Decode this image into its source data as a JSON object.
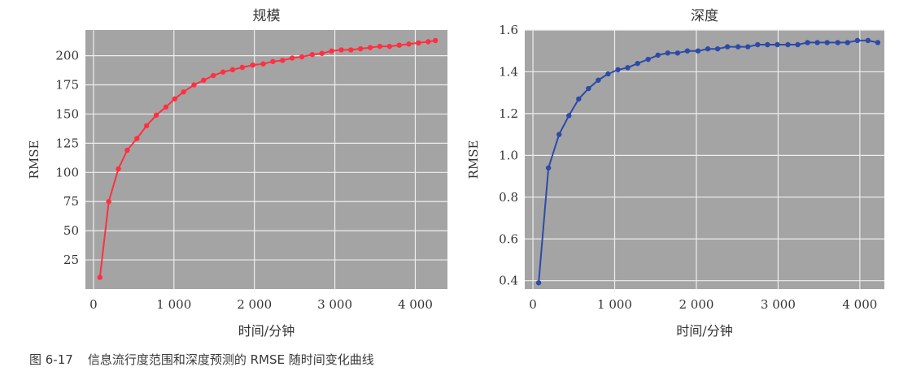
{
  "caption": {
    "number": "图 6-17",
    "text": "信息流行度范围和深度预测的 RMSE 随时间变化曲线"
  },
  "colors": {
    "plot_background": "#a4a4a4",
    "grid": "#eeeeee",
    "scale_line": "#ff3040",
    "depth_line": "#2c4aa8"
  },
  "chart_data": [
    {
      "type": "line",
      "title": "规模",
      "xlabel": "时间/分钟",
      "ylabel": "RMSE",
      "xlim": [
        -100,
        4400
      ],
      "ylim": [
        0,
        222
      ],
      "xticks": [
        0,
        1000,
        2000,
        3000,
        4000
      ],
      "xtick_labels": [
        "0",
        "1 000",
        "2 000",
        "3 000",
        "4 000"
      ],
      "yticks": [
        25,
        50,
        75,
        100,
        125,
        150,
        175,
        200
      ],
      "ytick_labels": [
        "25",
        "50",
        "75",
        "100",
        "125",
        "150",
        "175",
        "200"
      ],
      "grid": true,
      "series": [
        {
          "color": "#ff3040",
          "x": [
            80,
            190,
            310,
            420,
            540,
            660,
            780,
            900,
            1010,
            1120,
            1250,
            1370,
            1490,
            1610,
            1730,
            1850,
            1980,
            2110,
            2230,
            2350,
            2470,
            2590,
            2720,
            2840,
            2960,
            3080,
            3200,
            3320,
            3440,
            3560,
            3680,
            3800,
            3920,
            4040,
            4160,
            4250
          ],
          "y": [
            10,
            75,
            103,
            119,
            129,
            140,
            149,
            156,
            163,
            169,
            175,
            179,
            183,
            186,
            188,
            190,
            192,
            193,
            195,
            196,
            198,
            199,
            201,
            202,
            204,
            205,
            205,
            206,
            207,
            208,
            208,
            209,
            210,
            211,
            212,
            213
          ]
        }
      ]
    },
    {
      "type": "line",
      "title": "深度",
      "xlabel": "时间/分钟",
      "ylabel": "RMSE",
      "xlim": [
        -100,
        4300
      ],
      "ylim": [
        0.36,
        1.6
      ],
      "xticks": [
        0,
        1000,
        2000,
        3000,
        4000
      ],
      "xtick_labels": [
        "0",
        "1 000",
        "2 000",
        "3 000",
        "4 000"
      ],
      "yticks": [
        0.4,
        0.6,
        0.8,
        1.0,
        1.2,
        1.4,
        1.6
      ],
      "ytick_labels": [
        "0.4",
        "0.6",
        "0.8",
        "1.0",
        "1.2",
        "1.4",
        "1.6"
      ],
      "grid": true,
      "series": [
        {
          "color": "#2c4aa8",
          "x": [
            70,
            190,
            320,
            440,
            560,
            680,
            800,
            920,
            1040,
            1160,
            1280,
            1410,
            1530,
            1650,
            1770,
            1890,
            2020,
            2140,
            2260,
            2380,
            2510,
            2630,
            2750,
            2870,
            2990,
            3120,
            3240,
            3360,
            3480,
            3600,
            3730,
            3850,
            3970,
            4100,
            4220
          ],
          "y": [
            0.39,
            0.94,
            1.1,
            1.19,
            1.27,
            1.32,
            1.36,
            1.39,
            1.41,
            1.42,
            1.44,
            1.46,
            1.48,
            1.49,
            1.49,
            1.5,
            1.5,
            1.51,
            1.51,
            1.52,
            1.52,
            1.52,
            1.53,
            1.53,
            1.53,
            1.53,
            1.53,
            1.54,
            1.54,
            1.54,
            1.54,
            1.54,
            1.55,
            1.55,
            1.54
          ]
        }
      ]
    }
  ]
}
